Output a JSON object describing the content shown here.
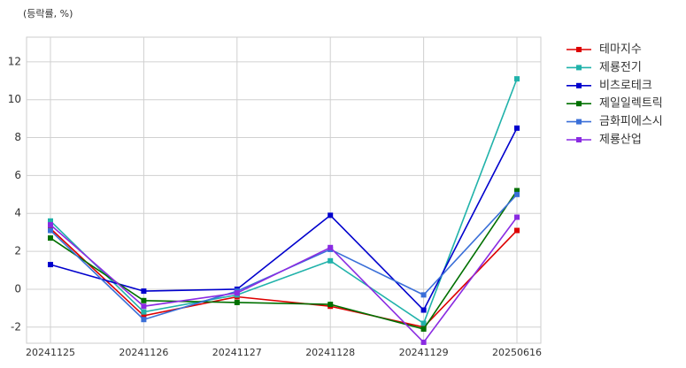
{
  "chart_data": {
    "type": "line",
    "subtitle": "(등락률, %)",
    "categories": [
      "20241125",
      "20241126",
      "20241127",
      "20241128",
      "20241129",
      "20250616"
    ],
    "series": [
      {
        "name": "테마지수",
        "color": "#dd0000",
        "values": [
          3.2,
          -1.4,
          -0.4,
          -0.9,
          -2.0,
          3.1
        ]
      },
      {
        "name": "제룡전기",
        "color": "#20b2aa",
        "values": [
          3.6,
          -1.2,
          -0.3,
          1.5,
          -1.8,
          11.1
        ]
      },
      {
        "name": "비츠로테크",
        "color": "#0000cd",
        "values": [
          1.3,
          -0.1,
          0.0,
          3.9,
          -1.1,
          8.5
        ]
      },
      {
        "name": "제일일렉트릭",
        "color": "#007000",
        "values": [
          2.7,
          -0.6,
          -0.7,
          -0.8,
          -2.1,
          5.2
        ]
      },
      {
        "name": "금화피에스시",
        "color": "#3a6fd8",
        "values": [
          3.1,
          -1.6,
          -0.1,
          2.1,
          -0.3,
          5.0
        ]
      },
      {
        "name": "제룡산업",
        "color": "#8a2be2",
        "values": [
          3.4,
          -0.9,
          -0.2,
          2.2,
          -2.8,
          3.8
        ]
      }
    ],
    "ylim": [
      -2.85,
      13.3
    ],
    "yticks": [
      -2,
      0,
      2,
      4,
      6,
      8,
      10,
      12
    ],
    "grid": true,
    "legend": "outside-right"
  }
}
